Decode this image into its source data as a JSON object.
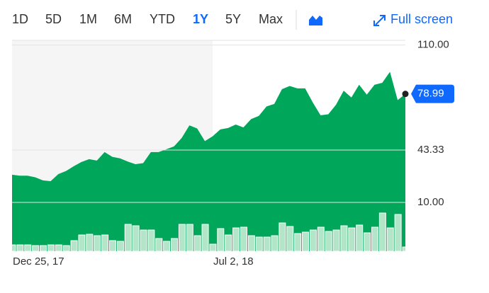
{
  "toolbar": {
    "ranges": [
      "1D",
      "5D",
      "1M",
      "6M",
      "YTD",
      "1Y",
      "5Y",
      "Max"
    ],
    "selected_range": 5,
    "full_screen": "Full screen"
  },
  "chart_data": {
    "type": "area",
    "categories": [
      "Dec 25, 17",
      null,
      null,
      null,
      null,
      null,
      null,
      null,
      null,
      null,
      null,
      null,
      null,
      null,
      null,
      null,
      null,
      null,
      null,
      null,
      null,
      null,
      null,
      null,
      null,
      null,
      "Jul 2, 18",
      null,
      null,
      null,
      null,
      null,
      null,
      null,
      null,
      null,
      null,
      null,
      null,
      null,
      null,
      null,
      null,
      null,
      null,
      null,
      null,
      null,
      null,
      null,
      null,
      null
    ],
    "series": [
      {
        "name": "Price",
        "color": "#00a65a",
        "values": [
          27.6,
          27,
          27,
          26,
          24,
          23.5,
          28,
          30,
          33,
          35.7,
          37.5,
          36.6,
          42,
          39,
          38,
          36,
          34.3,
          35,
          42,
          42,
          43.8,
          45.6,
          51,
          59,
          57,
          49,
          52,
          56.4,
          57.3,
          59.5,
          57.7,
          63,
          65,
          71,
          72.6,
          82,
          84,
          82.5,
          82.5,
          73.5,
          65.4,
          66,
          72,
          81,
          76.7,
          84.8,
          78.5,
          84.8,
          86,
          93,
          75,
          78.99
        ]
      },
      {
        "name": "Volume",
        "color": "#b3e6c8",
        "axis": "y2",
        "values": [
          9,
          9,
          9,
          8,
          8,
          9,
          9,
          8,
          15,
          23,
          24,
          22,
          23,
          15,
          14,
          38,
          36,
          30,
          30,
          18,
          14,
          18,
          38,
          38,
          22,
          38,
          10,
          32,
          23,
          33,
          34,
          22,
          20,
          20,
          22,
          40,
          35,
          25,
          27,
          30,
          34,
          28,
          30,
          36,
          33,
          37,
          26,
          34,
          54,
          33,
          52,
          6
        ]
      }
    ],
    "ylim": [
      -21,
      113
    ],
    "yticks": [
      {
        "value": 10,
        "label": "10.00"
      },
      43.33,
      {
        "value": 110,
        "label": "110.00"
      }
    ],
    "y2lim": [
      0,
      100
    ],
    "grid": true
  }
}
